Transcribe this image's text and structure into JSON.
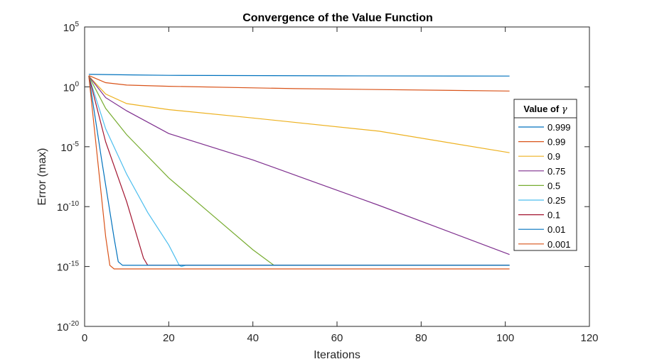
{
  "chart_data": {
    "type": "line",
    "title": "Convergence of the Value Function",
    "xlabel": "Iterations",
    "ylabel": "Error (max)",
    "xlim": [
      0,
      120
    ],
    "ylim_log10": [
      -20,
      5
    ],
    "y_scale": "log",
    "xticks": [
      0,
      20,
      40,
      60,
      80,
      100,
      120
    ],
    "xtick_labels": [
      "0",
      "20",
      "40",
      "60",
      "80",
      "100",
      "120"
    ],
    "yticks_log10": [
      5,
      0,
      -5,
      -10,
      -15,
      -20
    ],
    "ytick_base": "10",
    "ytick_exponents": [
      "5",
      "0",
      "-5",
      "-10",
      "-15",
      "-20"
    ],
    "grid": false,
    "legend": {
      "title_prefix": "Value of",
      "title_symbol": "γ",
      "position": "outside-right"
    },
    "series": [
      {
        "name": "0.999",
        "color": "#0072BD",
        "points_log10": [
          [
            1,
            1.05
          ],
          [
            10,
            1.0
          ],
          [
            20,
            0.96
          ],
          [
            60,
            0.92
          ],
          [
            101,
            0.9
          ]
        ]
      },
      {
        "name": "0.99",
        "color": "#D95319",
        "points_log10": [
          [
            1,
            0.95
          ],
          [
            5,
            0.35
          ],
          [
            10,
            0.15
          ],
          [
            20,
            0.05
          ],
          [
            50,
            -0.15
          ],
          [
            101,
            -0.35
          ]
        ]
      },
      {
        "name": "0.9",
        "color": "#EDB120",
        "points_log10": [
          [
            1,
            0.9
          ],
          [
            5,
            -0.6
          ],
          [
            10,
            -1.4
          ],
          [
            20,
            -1.9
          ],
          [
            40,
            -2.6
          ],
          [
            70,
            -3.7
          ],
          [
            101,
            -5.5
          ]
        ]
      },
      {
        "name": "0.75",
        "color": "#7E2F8E",
        "points_log10": [
          [
            1,
            0.9
          ],
          [
            5,
            -0.9
          ],
          [
            10,
            -2.0
          ],
          [
            20,
            -3.9
          ],
          [
            40,
            -6.1
          ],
          [
            70,
            -9.9
          ],
          [
            101,
            -14.0
          ]
        ]
      },
      {
        "name": "0.5",
        "color": "#77AC30",
        "points_log10": [
          [
            1,
            0.9
          ],
          [
            5,
            -1.8
          ],
          [
            10,
            -4.0
          ],
          [
            20,
            -7.6
          ],
          [
            30,
            -10.6
          ],
          [
            40,
            -13.6
          ],
          [
            45,
            -14.9
          ],
          [
            101,
            -14.9
          ]
        ]
      },
      {
        "name": "0.25",
        "color": "#4DBEEE",
        "points_log10": [
          [
            1,
            0.9
          ],
          [
            5,
            -3.5
          ],
          [
            10,
            -7.3
          ],
          [
            15,
            -10.5
          ],
          [
            20,
            -13.2
          ],
          [
            22.5,
            -14.9
          ],
          [
            23,
            -15.0
          ],
          [
            24,
            -14.9
          ],
          [
            101,
            -14.9
          ]
        ]
      },
      {
        "name": "0.1",
        "color": "#A2142F",
        "points_log10": [
          [
            1,
            0.9
          ],
          [
            5,
            -4.6
          ],
          [
            10,
            -9.6
          ],
          [
            14,
            -14.3
          ],
          [
            15,
            -14.9
          ],
          [
            101,
            -14.9
          ]
        ]
      },
      {
        "name": "0.01",
        "color": "#0072BD",
        "points_log10": [
          [
            1,
            0.9
          ],
          [
            4,
            -6.0
          ],
          [
            7,
            -12.6
          ],
          [
            8,
            -14.6
          ],
          [
            9,
            -14.9
          ],
          [
            101,
            -14.9
          ]
        ]
      },
      {
        "name": "0.001",
        "color": "#D95319",
        "points_log10": [
          [
            1,
            0.9
          ],
          [
            3,
            -5.8
          ],
          [
            5,
            -12.5
          ],
          [
            6,
            -14.9
          ],
          [
            7,
            -15.2
          ],
          [
            101,
            -15.2
          ]
        ]
      }
    ]
  }
}
